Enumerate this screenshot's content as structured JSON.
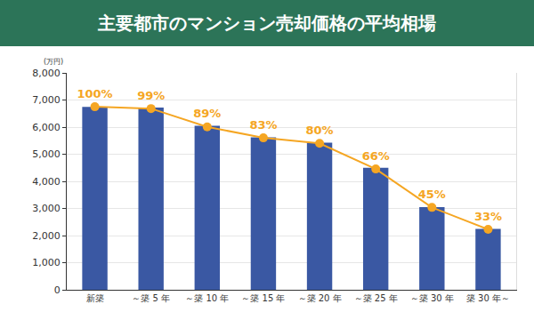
{
  "chart_data": {
    "type": "bar",
    "title": "主要都市のマンション売却価格の平均相場",
    "y_label": "(万円)",
    "categories": [
      "新築",
      "～築 5 年",
      "～築 10 年",
      "～築 15 年",
      "～築 20 年",
      "～築 25 年",
      "～築 30 年",
      "築 30 年～"
    ],
    "series": [
      {
        "type": "bar",
        "color": "#3a58a3",
        "values": [
          6750,
          6720,
          6050,
          5620,
          5430,
          4500,
          3050,
          2250
        ]
      },
      {
        "type": "line",
        "color": "#f5a623",
        "axis": "y2",
        "marker": "circle",
        "line_style": "solid",
        "data_labels": true,
        "values": [
          100,
          99,
          89,
          83,
          80,
          66,
          45,
          33
        ],
        "value_labels": [
          "100%",
          "99%",
          "89%",
          "83%",
          "80%",
          "66%",
          "45%",
          "33%"
        ]
      }
    ],
    "ylim": [
      0,
      8000
    ],
    "yticks": [
      0,
      {
        "value": 1000,
        "label": "1,000"
      },
      {
        "value": 2000,
        "label": "2,000"
      },
      {
        "value": 3000,
        "label": "3,000"
      },
      {
        "value": 4000,
        "label": "4,000"
      },
      {
        "value": 5000,
        "label": "5,000"
      },
      {
        "value": 6000,
        "label": "6,000"
      },
      {
        "value": 7000,
        "label": "7,000"
      },
      {
        "value": 8000,
        "label": "8,000"
      }
    ],
    "y2lim": [
      0,
      118.5
    ],
    "grid": true
  }
}
